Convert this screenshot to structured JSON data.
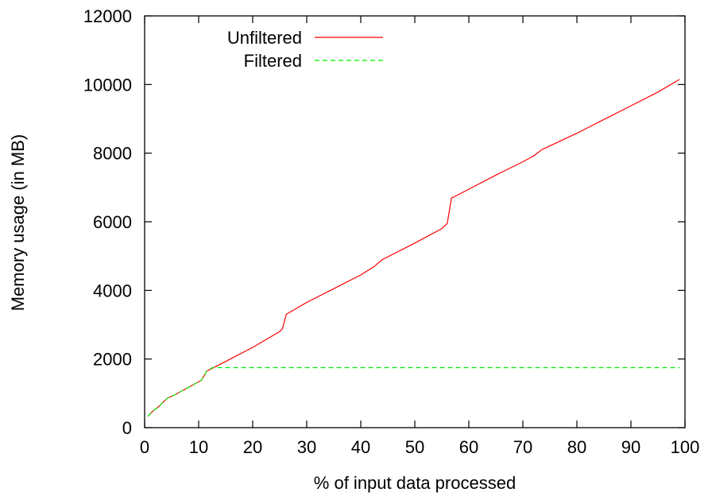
{
  "chart_data": {
    "type": "line",
    "title": "",
    "xlabel": "% of input data processed",
    "ylabel": "Memory usage (in MB)",
    "xlim": [
      0,
      100
    ],
    "ylim": [
      0,
      12000
    ],
    "x_ticks": [
      0,
      10,
      20,
      30,
      40,
      50,
      60,
      70,
      80,
      90,
      100
    ],
    "y_ticks": [
      0,
      2000,
      4000,
      6000,
      8000,
      10000,
      12000
    ],
    "grid": false,
    "legend_position": "top-left",
    "series": [
      {
        "name": "Unfiltered",
        "color": "#ff0000",
        "dash": "solid",
        "points": [
          [
            0.6,
            330
          ],
          [
            1.5,
            480
          ],
          [
            2.5,
            600
          ],
          [
            3.5,
            750
          ],
          [
            4.2,
            860
          ],
          [
            5.5,
            950
          ],
          [
            7,
            1080
          ],
          [
            9,
            1250
          ],
          [
            10.5,
            1380
          ],
          [
            11.5,
            1650
          ],
          [
            15,
            1930
          ],
          [
            20,
            2340
          ],
          [
            25,
            2800
          ],
          [
            25.5,
            2880
          ],
          [
            26.2,
            3300
          ],
          [
            30,
            3650
          ],
          [
            35,
            4050
          ],
          [
            40,
            4450
          ],
          [
            42.5,
            4700
          ],
          [
            44,
            4900
          ],
          [
            50,
            5380
          ],
          [
            55,
            5800
          ],
          [
            56,
            5950
          ],
          [
            56.8,
            6700
          ],
          [
            57.2,
            6720
          ],
          [
            60,
            6950
          ],
          [
            65,
            7360
          ],
          [
            70,
            7750
          ],
          [
            72,
            7920
          ],
          [
            73.5,
            8100
          ],
          [
            80,
            8580
          ],
          [
            90,
            9380
          ],
          [
            95,
            9780
          ],
          [
            99,
            10150
          ]
        ]
      },
      {
        "name": "Filtered",
        "color": "#00ee00",
        "dash": "dashed",
        "points": [
          [
            0.6,
            330
          ],
          [
            1.5,
            480
          ],
          [
            2.5,
            600
          ],
          [
            3.5,
            750
          ],
          [
            4.2,
            860
          ],
          [
            5.5,
            950
          ],
          [
            7,
            1080
          ],
          [
            9,
            1250
          ],
          [
            10.5,
            1380
          ],
          [
            11.5,
            1650
          ],
          [
            12.5,
            1750
          ],
          [
            99,
            1750
          ]
        ]
      }
    ]
  }
}
